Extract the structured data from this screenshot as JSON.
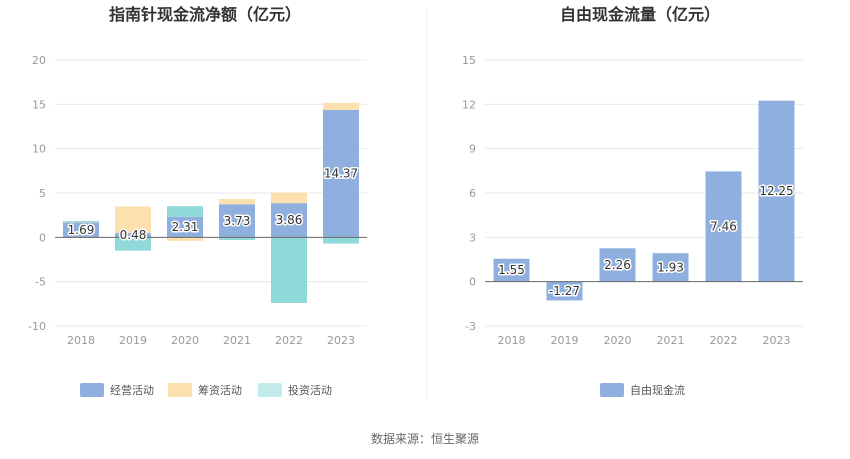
{
  "source": "数据来源：恒生聚源",
  "colors": {
    "operating": "#8fb0de",
    "financing": "#fde0b0",
    "investing": "#8fd9d9",
    "free_cash_flow": "#8fb0de",
    "legend_investing": "#c2ecec"
  },
  "chart_data": [
    {
      "type": "bar",
      "stacked": true,
      "title": "指南针现金流净额（亿元）",
      "categories": [
        "2018",
        "2019",
        "2020",
        "2021",
        "2022",
        "2023"
      ],
      "ylim": [
        -10,
        20
      ],
      "yticks": [
        -10,
        -5,
        0,
        5,
        10,
        15,
        20
      ],
      "grid": true,
      "legend_position": "bottom",
      "series": [
        {
          "name": "经营活动",
          "values": [
            1.69,
            0.48,
            2.31,
            3.73,
            3.86,
            14.37
          ],
          "data_labels": [
            "1.69",
            "0.48",
            "2.31",
            "3.73",
            "3.86",
            "14.37"
          ]
        },
        {
          "name": "筹资活动",
          "values": [
            0.05,
            3.0,
            -0.4,
            0.6,
            1.2,
            0.8
          ]
        },
        {
          "name": "投资活动",
          "values": [
            0.1,
            -1.5,
            1.2,
            -0.3,
            -7.4,
            -0.7
          ]
        }
      ]
    },
    {
      "type": "bar",
      "title": "自由现金流量（亿元）",
      "categories": [
        "2018",
        "2019",
        "2020",
        "2021",
        "2022",
        "2023"
      ],
      "ylim": [
        -3,
        15
      ],
      "yticks": [
        -3,
        0,
        3,
        6,
        9,
        12,
        15
      ],
      "grid": true,
      "legend_position": "bottom",
      "series": [
        {
          "name": "自由现金流",
          "values": [
            1.55,
            -1.27,
            2.26,
            1.93,
            7.46,
            12.25
          ],
          "data_labels": [
            "1.55",
            "-1.27",
            "2.26",
            "1.93",
            "7.46",
            "12.25"
          ]
        }
      ]
    }
  ]
}
